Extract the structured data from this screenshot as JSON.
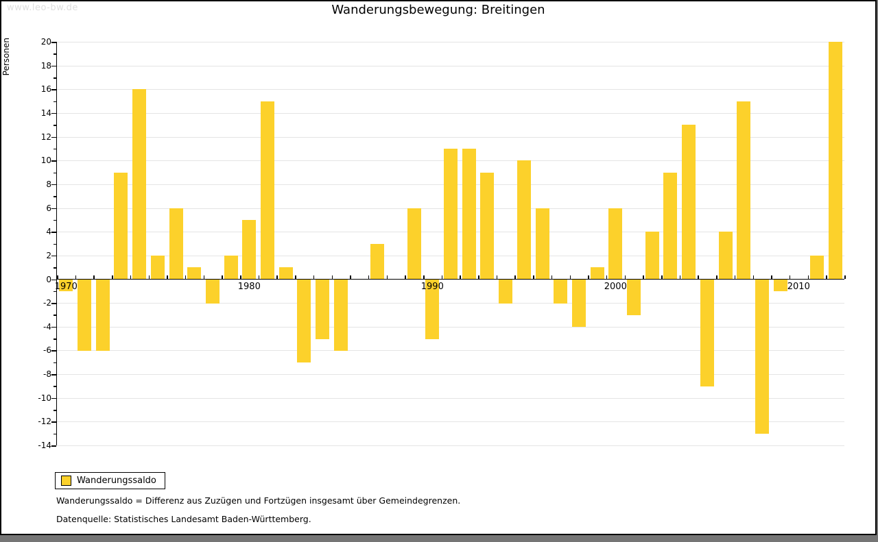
{
  "window": {
    "watermark": "www.leo-bw.de"
  },
  "title": "Wanderungsbewegung: Breitingen",
  "chart_data": {
    "type": "bar",
    "title": "Wanderungsbewegung: Breitingen",
    "xlabel": "",
    "ylabel": "Personen",
    "years": [
      1970,
      1971,
      1972,
      1973,
      1974,
      1975,
      1976,
      1977,
      1978,
      1979,
      1980,
      1981,
      1982,
      1983,
      1984,
      1985,
      1986,
      1987,
      1988,
      1989,
      1990,
      1991,
      1992,
      1993,
      1994,
      1995,
      1996,
      1997,
      1998,
      1999,
      2000,
      2001,
      2002,
      2003,
      2004,
      2005,
      2006,
      2007,
      2008,
      2009,
      2010,
      2011,
      2012
    ],
    "values": [
      -1,
      -6,
      -6,
      9,
      16,
      2,
      6,
      1,
      -2,
      2,
      5,
      15,
      1,
      -7,
      -5,
      -6,
      0,
      3,
      0,
      6,
      -5,
      11,
      11,
      9,
      -2,
      10,
      6,
      -2,
      -4,
      1,
      6,
      -3,
      4,
      9,
      13,
      -9,
      4,
      15,
      -13,
      -1,
      0,
      2,
      20
    ],
    "series_label": "Wanderungssaldo",
    "ylim": [
      -14,
      20
    ],
    "ytick_label_step": 2,
    "ytick_minor_step": 1,
    "xtick_labels": [
      "1970",
      "1980",
      "1990",
      "2000",
      "2010"
    ],
    "grid": "horizontal",
    "legend_position": "bottom-left",
    "bar_color": "#FCD12B"
  },
  "legend": {
    "label": "Wanderungssaldo"
  },
  "footnotes": {
    "definition": "Wanderungssaldo = Differenz aus Zuzügen und Fortzügen insgesamt über Gemeindegrenzen.",
    "source": "Datenquelle: Statistisches Landesamt Baden-Württemberg."
  },
  "colors": {
    "bar": "#FCD12B",
    "gridline": "#e4e4e4",
    "axis": "#000000",
    "watermark": "#dedede",
    "backdrop_shadow": "#757575",
    "panel_background": "#ffffff"
  }
}
